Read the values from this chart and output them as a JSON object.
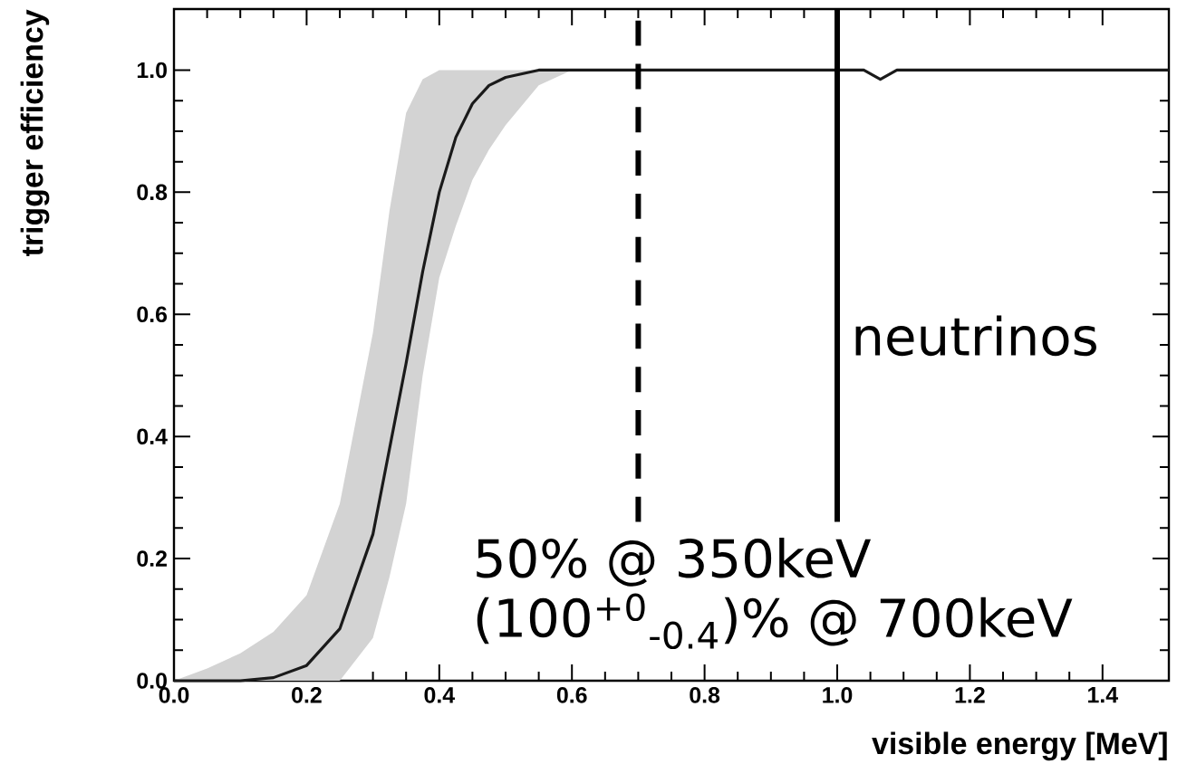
{
  "chart_data": {
    "type": "line",
    "xlabel": "visible energy [MeV]",
    "ylabel": "trigger efficiency",
    "xlim": [
      0,
      1.5
    ],
    "ylim": [
      0,
      1.1
    ],
    "xticks": [
      {
        "value": 0,
        "label": "0.0"
      },
      {
        "value": 0.2,
        "label": "0.2"
      },
      {
        "value": 0.4,
        "label": "0.4"
      },
      {
        "value": 0.6,
        "label": "0.6"
      },
      {
        "value": 0.8,
        "label": "0.8"
      },
      {
        "value": 1.0,
        "label": "1.0"
      },
      {
        "value": 1.2,
        "label": "1.2"
      },
      {
        "value": 1.4,
        "label": "1.4"
      }
    ],
    "yticks": [
      {
        "value": 0,
        "label": "0.0"
      },
      {
        "value": 0.2,
        "label": "0.2"
      },
      {
        "value": 0.4,
        "label": "0.4"
      },
      {
        "value": 0.6,
        "label": "0.6"
      },
      {
        "value": 0.8,
        "label": "0.8"
      },
      {
        "value": 1.0,
        "label": "1.0"
      }
    ],
    "grid": false,
    "marker": "none",
    "line_style": "solid",
    "series": [
      {
        "color": "#1a1a1a",
        "x": [
          0,
          0.05,
          0.1,
          0.15,
          0.2,
          0.25,
          0.3,
          0.325,
          0.35,
          0.375,
          0.4,
          0.425,
          0.45,
          0.475,
          0.5,
          0.55,
          0.6,
          0.7,
          1.0,
          1.04,
          1.065,
          1.09,
          1.5
        ],
        "values": [
          0,
          0,
          0,
          0.005,
          0.025,
          0.085,
          0.24,
          0.38,
          0.52,
          0.67,
          0.8,
          0.89,
          0.945,
          0.975,
          0.988,
          1.0,
          1.0,
          1.0,
          1.0,
          1.0,
          0.985,
          1.0,
          1.0
        ],
        "lower": [
          0,
          0,
          0,
          0,
          0,
          0,
          0.07,
          0.17,
          0.29,
          0.5,
          0.66,
          0.745,
          0.82,
          0.87,
          0.91,
          0.975,
          1.0,
          1.0,
          1.0,
          1.0,
          0.985,
          1.0,
          1.0
        ],
        "upper": [
          0,
          0.02,
          0.045,
          0.08,
          0.14,
          0.29,
          0.57,
          0.77,
          0.93,
          0.985,
          1.0,
          1.0,
          1.0,
          1.0,
          1.0,
          1.0,
          1.0,
          1.0,
          1.0,
          1.0,
          0.985,
          1.0,
          1.0
        ]
      }
    ],
    "ref_lines": [
      {
        "axis": "x",
        "value": 0.7,
        "line_style": "dashed",
        "color": "#000000"
      },
      {
        "axis": "x",
        "value": 1.0,
        "line_style": "solid",
        "color": "#000000",
        "label": "neutrinos"
      }
    ],
    "annotations": [
      "50% @ 350keV",
      "(100$^{+0}$$_{-0.4}$)% @ 700keV"
    ]
  }
}
